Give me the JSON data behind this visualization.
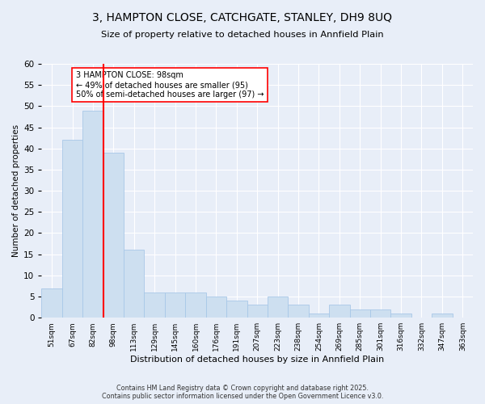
{
  "title_line1": "3, HAMPTON CLOSE, CATCHGATE, STANLEY, DH9 8UQ",
  "title_line2": "Size of property relative to detached houses in Annfield Plain",
  "xlabel": "Distribution of detached houses by size in Annfield Plain",
  "ylabel": "Number of detached properties",
  "categories": [
    "51sqm",
    "67sqm",
    "82sqm",
    "98sqm",
    "113sqm",
    "129sqm",
    "145sqm",
    "160sqm",
    "176sqm",
    "191sqm",
    "207sqm",
    "223sqm",
    "238sqm",
    "254sqm",
    "269sqm",
    "285sqm",
    "301sqm",
    "316sqm",
    "332sqm",
    "347sqm",
    "363sqm"
  ],
  "values": [
    7,
    42,
    49,
    39,
    16,
    6,
    6,
    6,
    5,
    4,
    3,
    5,
    3,
    1,
    3,
    2,
    2,
    1,
    0,
    1,
    0
  ],
  "bar_color": "#cddff0",
  "bar_edge_color": "#a8c8e8",
  "vline_color": "red",
  "annotation_text": "3 HAMPTON CLOSE: 98sqm\n← 49% of detached houses are smaller (95)\n50% of semi-detached houses are larger (97) →",
  "annotation_box_color": "white",
  "annotation_box_edge_color": "red",
  "ylim": [
    0,
    60
  ],
  "yticks": [
    0,
    5,
    10,
    15,
    20,
    25,
    30,
    35,
    40,
    45,
    50,
    55,
    60
  ],
  "figure_bg": "#e8eef8",
  "plot_bg": "#e8eef8",
  "grid_color": "white",
  "footer_line1": "Contains HM Land Registry data © Crown copyright and database right 2025.",
  "footer_line2": "Contains public sector information licensed under the Open Government Licence v3.0."
}
